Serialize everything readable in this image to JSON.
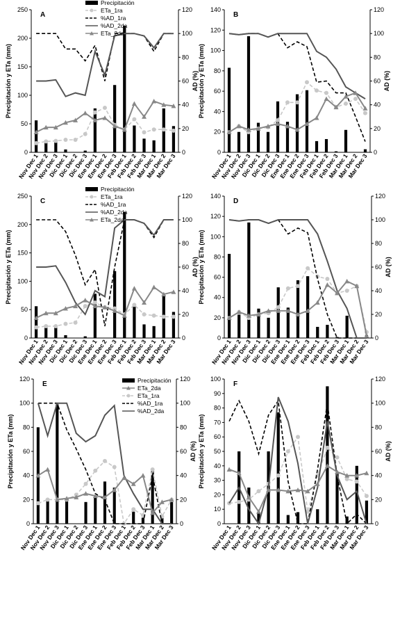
{
  "figure": {
    "panel_count": 6
  },
  "series_styles": {
    "Precipitación": {
      "kind": "bar",
      "color": "#000000"
    },
    "ETa_1ra": {
      "kind": "line",
      "color": "#c8c8c8",
      "dash": true,
      "marker": "circle"
    },
    "%AD_1ra": {
      "kind": "line",
      "color": "#000000",
      "dash": true,
      "marker": "none"
    },
    "%AD_2da": {
      "kind": "line",
      "color": "#555555",
      "dash": false,
      "marker": "none"
    },
    "ETa_2da": {
      "kind": "line",
      "color": "#888888",
      "dash": false,
      "marker": "triangle"
    }
  },
  "chart_data": [
    {
      "panel": "A",
      "type": "bar",
      "categories": [
        "Nov Dec 1",
        "Nov Dec 2",
        "Nov Dec 3",
        "Dic Dec 1",
        "Dic Dec 2",
        "Dic Dec 3",
        "Ene Dec 1",
        "Ene Dec 2",
        "Ene Dec 3",
        "Feb Dec 1",
        "Feb Dec 2",
        "Feb Dec 3",
        "Mar Dec 1",
        "Mar Dec 2",
        "Mar Dec 3"
      ],
      "ylabel": "Precipitación y ETa (mm)",
      "y2label": "AD (%)",
      "ylim": [
        0,
        250
      ],
      "y2lim": [
        0,
        120
      ],
      "yticks": [
        0,
        50,
        100,
        150,
        200,
        250
      ],
      "y2ticks": [
        0,
        20,
        40,
        60,
        80,
        100,
        120
      ],
      "legend_position": "top-center",
      "legend": [
        "Precipitación",
        "ETa_1ra",
        "%AD_1ra",
        "%AD_2da",
        "ETa_2da"
      ],
      "series": [
        {
          "name": "Precipitación",
          "axis": "y",
          "values": [
            56,
            20,
            18,
            5,
            0,
            3,
            77,
            0,
            118,
            222,
            47,
            24,
            21,
            77,
            46
          ]
        },
        {
          "name": "ETa_1ra",
          "axis": "y",
          "values": [
            16,
            19,
            20,
            22,
            22,
            32,
            70,
            78,
            48,
            40,
            58,
            35,
            40,
            40,
            38
          ]
        },
        {
          "name": "%AD_1ra",
          "axis": "y2",
          "values": [
            100,
            100,
            100,
            87,
            87,
            77,
            90,
            60,
            100,
            100,
            100,
            98,
            85,
            100,
            100
          ]
        },
        {
          "name": "%AD_2da",
          "axis": "y2",
          "values": [
            60,
            60,
            61,
            47,
            50,
            48,
            85,
            65,
            98,
            100,
            100,
            98,
            88,
            100,
            100
          ]
        },
        {
          "name": "ETa_2da",
          "axis": "y2",
          "values": [
            17,
            21,
            21,
            25,
            27,
            33,
            27,
            29,
            22,
            19,
            41,
            30,
            43,
            40,
            39
          ]
        }
      ]
    },
    {
      "panel": "B",
      "type": "bar",
      "categories": [
        "Nov Dec 1",
        "Nov Dec 2",
        "Nov Dec 3",
        "Dic Dec 1",
        "Dic Dec 2",
        "Dic Dec 3",
        "Ene Dec 1",
        "Ene Dec 2",
        "Ene Dec 3",
        "Feb Dec 1",
        "Feb Dec 2",
        "Feb Dec 3",
        "Mar Dec 1",
        "Mar Dec 2",
        "Mar Dec 3"
      ],
      "ylabel": "Precipitación y ETa (mm)",
      "y2label": "AD (%)",
      "ylim": [
        0,
        140
      ],
      "y2lim": [
        0,
        120
      ],
      "yticks": [
        0,
        20,
        40,
        60,
        80,
        100,
        120,
        140
      ],
      "y2ticks": [
        0,
        20,
        40,
        60,
        80,
        100,
        120
      ],
      "series": [
        {
          "name": "Precipitación",
          "axis": "y",
          "values": [
            83,
            20,
            114,
            29,
            20,
            50,
            30,
            57,
            61,
            11,
            13,
            1,
            22,
            0,
            3
          ]
        },
        {
          "name": "ETa_1ra",
          "axis": "y2",
          "values": [
            17,
            22,
            17,
            20,
            21,
            27,
            42,
            42,
            59,
            52,
            50,
            38,
            41,
            45,
            33
          ]
        },
        {
          "name": "%AD_1ra",
          "axis": "y2",
          "values": [
            100,
            99,
            100,
            100,
            97,
            100,
            88,
            93,
            89,
            59,
            60,
            50,
            50,
            30,
            9
          ]
        },
        {
          "name": "%AD_2da",
          "axis": "y2",
          "values": [
            100,
            99,
            100,
            100,
            97,
            100,
            100,
            100,
            100,
            85,
            80,
            70,
            55,
            50,
            45
          ]
        },
        {
          "name": "ETa_2da",
          "axis": "y2",
          "values": [
            17,
            22,
            19,
            20,
            22,
            24,
            22,
            19,
            24,
            29,
            45,
            38,
            47,
            50,
            37
          ]
        }
      ]
    },
    {
      "panel": "C",
      "type": "bar",
      "categories": [
        "Nov Dec 1",
        "Nov Dec 2",
        "Nov Dec 3",
        "Dic Dec 1",
        "Dic Dec 2",
        "Dic Dec 3",
        "Ene Dec 1",
        "Ene Dec 2",
        "Ene Dec 3",
        "Feb Dec 1",
        "Feb Dec 2",
        "Feb Dec 3",
        "Mar Dec 1",
        "Mar Dec 2",
        "Mar Dec 3"
      ],
      "ylabel": "Precipitación y ETa (mm)",
      "y2label": "AD (%)",
      "ylim": [
        0,
        250
      ],
      "y2lim": [
        0,
        120
      ],
      "yticks": [
        0,
        50,
        100,
        150,
        200,
        250
      ],
      "y2ticks": [
        0,
        20,
        40,
        60,
        80,
        100,
        120
      ],
      "legend_position": "top-center",
      "legend": [
        "Precipitación",
        "ETa_1ra",
        "%AD_1ra",
        "%AD_2da",
        "ETa_2da"
      ],
      "series": [
        {
          "name": "Precipitación",
          "axis": "y",
          "values": [
            56,
            20,
            20,
            5,
            0,
            3,
            78,
            0,
            118,
            222,
            55,
            24,
            21,
            77,
            46
          ]
        },
        {
          "name": "ETa_1ra",
          "axis": "y2",
          "values": [
            9,
            10,
            10,
            12,
            13,
            27,
            30,
            26,
            25,
            20,
            28,
            20,
            19,
            18,
            18
          ]
        },
        {
          "name": "%AD_1ra",
          "axis": "y2",
          "values": [
            100,
            100,
            100,
            90,
            70,
            45,
            58,
            10,
            60,
            100,
            100,
            97,
            85,
            100,
            100
          ]
        },
        {
          "name": "%AD_2da",
          "axis": "y2",
          "values": [
            60,
            60,
            61,
            47,
            30,
            20,
            40,
            35,
            93,
            100,
            100,
            97,
            87,
            100,
            100
          ]
        },
        {
          "name": "ETa_2da",
          "axis": "y2",
          "values": [
            17,
            21,
            21,
            25,
            27,
            32,
            27,
            26,
            23,
            19,
            42,
            30,
            43,
            37,
            39
          ]
        }
      ]
    },
    {
      "panel": "D",
      "type": "bar",
      "categories": [
        "Nov Dec 1",
        "Nov Dec 2",
        "Nov Dec 3",
        "Dic Dec 1",
        "Dic Dec 2",
        "Dic Dec 3",
        "Ene Dec 1",
        "Ene Dec 2",
        "Ene Dec 3",
        "Feb Dec 1",
        "Feb Dec 2",
        "Feb Dec 3",
        "Mar Dec 1",
        "Mar Dec 2",
        "Mar Dec 3"
      ],
      "ylabel": "Precipitación y ETa (mm)",
      "y2label": "AD (%)",
      "ylim": [
        0,
        140
      ],
      "y2lim": [
        0,
        120
      ],
      "yticks": [
        0,
        20,
        40,
        60,
        80,
        100,
        120,
        140
      ],
      "y2ticks": [
        0,
        20,
        40,
        60,
        80,
        100,
        120
      ],
      "series": [
        {
          "name": "Precipitación",
          "axis": "y",
          "values": [
            83,
            23,
            114,
            29,
            20,
            50,
            30,
            57,
            61,
            11,
            13,
            1,
            22,
            0,
            3
          ]
        },
        {
          "name": "ETa_1ra",
          "axis": "y2",
          "values": [
            17,
            22,
            17,
            20,
            21,
            26,
            42,
            44,
            59,
            52,
            50,
            38,
            40,
            44,
            5
          ]
        },
        {
          "name": "%AD_1ra",
          "axis": "y2",
          "values": [
            100,
            99,
            100,
            100,
            97,
            100,
            88,
            93,
            89,
            50,
            20,
            0,
            0,
            0,
            0
          ]
        },
        {
          "name": "%AD_2da",
          "axis": "y2",
          "values": [
            100,
            99,
            100,
            100,
            97,
            100,
            100,
            100,
            100,
            88,
            65,
            40,
            25,
            0,
            0
          ]
        },
        {
          "name": "ETa_2da",
          "axis": "y2",
          "values": [
            17,
            22,
            19,
            20,
            23,
            23,
            23,
            20,
            23,
            30,
            45,
            38,
            48,
            44,
            2
          ]
        }
      ]
    },
    {
      "panel": "E",
      "type": "bar",
      "categories": [
        "Nov Dec 1",
        "Nov Dec 2",
        "Nov Dec 3",
        "Dic Dec 1",
        "Dic Dec 2",
        "Dic Dec 3",
        "Ene Dec 1",
        "Ene Dec 2",
        "Ene Dec 3",
        "Feb Dec 1",
        "Feb Dec 2",
        "Feb Dec 3",
        "Mar Dec 1",
        "Mar Dec 2",
        "Mar Dec 3"
      ],
      "ylabel": "Precipitación y ETa (mm)",
      "y2label": "AD (%)",
      "ylim": [
        0,
        120
      ],
      "y2lim": [
        0,
        120
      ],
      "yticks": [
        0,
        20,
        40,
        60,
        80,
        100,
        120
      ],
      "y2ticks": [
        0,
        20,
        40,
        60,
        80,
        100,
        120
      ],
      "legend_position": "top-right",
      "legend": [
        "Precipitación",
        "ETa_2da",
        "ETa_1ra",
        "%AD_1ra",
        "%AD_2da"
      ],
      "series": [
        {
          "name": "Precipitación",
          "axis": "y",
          "values": [
            80,
            20,
            99,
            19,
            0,
            18,
            23,
            35,
            30,
            0,
            10,
            5,
            44,
            7,
            18
          ]
        },
        {
          "name": "ETa_1ra",
          "axis": "y2",
          "values": [
            17,
            20,
            20,
            20,
            24,
            33,
            44,
            52,
            47,
            0,
            12,
            7,
            45,
            6,
            20
          ]
        },
        {
          "name": "%AD_1ra",
          "axis": "y2",
          "values": [
            100,
            100,
            100,
            78,
            62,
            45,
            25,
            20,
            0,
            0,
            0,
            0,
            40,
            0,
            0
          ]
        },
        {
          "name": "%AD_2da",
          "axis": "y2",
          "values": [
            100,
            73,
            100,
            100,
            75,
            68,
            73,
            90,
            98,
            40,
            25,
            12,
            12,
            0,
            0
          ]
        },
        {
          "name": "ETa_2da",
          "axis": "y2",
          "values": [
            40,
            45,
            20,
            21,
            22,
            25,
            23,
            22,
            28,
            38,
            33,
            40,
            9,
            18,
            20
          ]
        }
      ]
    },
    {
      "panel": "F",
      "type": "bar",
      "categories": [
        "Nov Dec 1",
        "Nov Dec 2",
        "Nov Dec 3",
        "Dic Dec 1",
        "Dic Dec 2",
        "Dic Dec 3",
        "Ene Dec 1",
        "Ene Dec 2",
        "Ene Dec 3",
        "Feb Dec 1",
        "Feb Dec 2",
        "Feb Dec 3",
        "Mar Dec 1",
        "Mar Dec 2",
        "Mar Dec 3"
      ],
      "ylabel": "Precipitación y ETa (mm)",
      "y2label": "AD (%)",
      "ylim": [
        0,
        100
      ],
      "y2lim": [
        0,
        120
      ],
      "yticks": [
        0,
        10,
        20,
        30,
        40,
        50,
        60,
        70,
        80,
        90,
        100
      ],
      "y2ticks": [
        0,
        20,
        40,
        60,
        80,
        100,
        120
      ],
      "series": [
        {
          "name": "Precipitación",
          "axis": "y",
          "values": [
            0,
            50,
            25,
            8,
            50,
            77,
            6,
            8,
            0,
            10,
            95,
            35,
            5,
            40,
            16
          ]
        },
        {
          "name": "ETa_1ra",
          "axis": "y2",
          "values": [
            17,
            18,
            20,
            27,
            33,
            40,
            60,
            72,
            10,
            40,
            63,
            55,
            37,
            35,
            23
          ]
        },
        {
          "name": "%AD_1ra",
          "axis": "y2",
          "values": [
            85,
            102,
            85,
            58,
            90,
            102,
            35,
            0,
            0,
            45,
            100,
            40,
            0,
            8,
            0
          ]
        },
        {
          "name": "%AD_2da",
          "axis": "y2",
          "values": [
            17,
            30,
            12,
            0,
            30,
            105,
            85,
            50,
            0,
            30,
            85,
            40,
            20,
            27,
            0
          ]
        },
        {
          "name": "ETa_2da",
          "axis": "y2",
          "values": [
            45,
            42,
            22,
            10,
            28,
            28,
            27,
            28,
            27,
            33,
            48,
            43,
            40,
            40,
            42
          ]
        }
      ]
    }
  ]
}
